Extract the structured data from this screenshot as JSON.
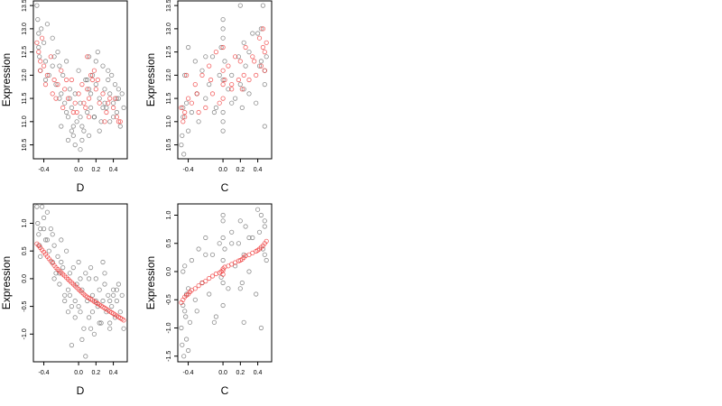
{
  "chart_data": [
    {
      "type": "scatter",
      "xlabel": "D",
      "ylabel": "Expression",
      "xlim": [
        -0.52,
        0.56
      ],
      "ylim": [
        10.2,
        13.6
      ],
      "xticks": [
        "-0.4",
        "0.0",
        "0.2",
        "0.4"
      ],
      "xtick_values": [
        -0.4,
        0.0,
        0.2,
        0.4
      ],
      "yticks": [
        "10.5",
        "11.0",
        "11.5",
        "12.0",
        "12.5",
        "13.0",
        "13.5"
      ],
      "yvalues": [
        10.5,
        11.0,
        11.5,
        12.0,
        12.5,
        13.0,
        13.5
      ],
      "grid": false,
      "series": [
        {
          "color": "#333333",
          "x": [
            -0.48,
            -0.47,
            -0.46,
            -0.45,
            -0.44,
            -0.43,
            -0.4,
            -0.38,
            -0.36,
            -0.34,
            -0.3,
            -0.28,
            -0.26,
            -0.24,
            -0.22,
            -0.2,
            -0.18,
            -0.16,
            -0.14,
            -0.12,
            -0.1,
            -0.08,
            -0.06,
            -0.04,
            -0.02,
            0.0,
            0.02,
            0.04,
            0.06,
            0.08,
            0.1,
            0.12,
            0.14,
            0.16,
            0.18,
            0.2,
            0.22,
            0.24,
            0.26,
            0.28,
            0.3,
            0.32,
            0.34,
            0.36,
            0.38,
            0.4,
            0.42,
            0.44,
            0.46,
            0.48,
            0.5,
            0.52,
            -0.46,
            -0.38,
            -0.3,
            -0.22,
            -0.14,
            -0.06,
            0.02,
            0.1,
            0.14,
            0.2,
            0.3,
            0.4,
            0.46,
            -0.2,
            -0.12,
            -0.04,
            0.04,
            0.12,
            0.24,
            0.36,
            -0.1,
            -0.08,
            0.02,
            0.12,
            0.18,
            0.28,
            0.34,
            0.44
          ],
          "y": [
            13.5,
            13.2,
            12.9,
            12.4,
            12.1,
            13.0,
            12.7,
            12.3,
            13.1,
            12.0,
            12.8,
            12.4,
            11.8,
            12.5,
            12.2,
            11.6,
            12.0,
            11.4,
            12.3,
            11.1,
            11.7,
            11.3,
            10.9,
            11.6,
            11.0,
            12.1,
            11.4,
            10.6,
            10.8,
            11.9,
            11.2,
            12.4,
            11.6,
            12.0,
            11.1,
            11.8,
            12.5,
            11.5,
            11.0,
            12.2,
            11.7,
            11.3,
            11.9,
            11.0,
            12.0,
            11.4,
            11.8,
            11.2,
            11.5,
            10.9,
            11.6,
            11.3,
            12.6,
            11.9,
            12.2,
            11.5,
            11.2,
            10.7,
            11.1,
            11.9,
            11.3,
            12.3,
            11.4,
            11.1,
            11.7,
            10.9,
            10.6,
            10.5,
            10.9,
            11.7,
            10.8,
            11.6,
            11.5,
            10.8,
            10.4,
            10.7,
            11.1,
            11.3,
            12.1,
            11.5
          ]
        },
        {
          "color": "#ee2222",
          "x": [
            -0.48,
            -0.46,
            -0.44,
            -0.42,
            -0.4,
            -0.36,
            -0.32,
            -0.28,
            -0.24,
            -0.2,
            -0.16,
            -0.12,
            -0.08,
            -0.04,
            0.0,
            0.04,
            0.08,
            0.1,
            0.12,
            0.14,
            0.16,
            0.2,
            0.24,
            0.28,
            0.32,
            0.36,
            0.4,
            0.44,
            0.48,
            -0.44,
            -0.3,
            -0.18,
            -0.06,
            0.06,
            0.12,
            0.22,
            0.34,
            0.46,
            -0.38,
            -0.26,
            -0.14,
            -0.02,
            0.1,
            0.18,
            0.3,
            0.42
          ],
          "y": [
            12.7,
            12.5,
            12.3,
            12.8,
            12.2,
            12.0,
            12.4,
            11.9,
            11.8,
            12.1,
            11.7,
            11.5,
            11.9,
            11.4,
            11.6,
            11.8,
            11.3,
            12.4,
            11.5,
            12.0,
            11.9,
            11.7,
            11.4,
            11.6,
            11.2,
            11.5,
            11.3,
            11.1,
            11.0,
            12.1,
            11.6,
            11.3,
            11.2,
            11.4,
            11.1,
            11.9,
            11.4,
            11.0,
            11.8,
            11.5,
            11.9,
            11.2,
            11.7,
            12.1,
            11.0,
            11.5
          ]
        }
      ]
    },
    {
      "type": "scatter",
      "xlabel": "C",
      "ylabel": "Expression",
      "xlim": [
        -0.52,
        0.56
      ],
      "ylim": [
        10.2,
        13.6
      ],
      "xticks": [
        "-0.4",
        "0.0",
        "0.2",
        "0.4"
      ],
      "xtick_values": [
        -0.4,
        0.0,
        0.2,
        0.4
      ],
      "yticks": [
        "10.5",
        "11.0",
        "11.5",
        "12.0",
        "12.5",
        "13.0",
        "13.5"
      ],
      "yvalues": [
        10.5,
        11.0,
        11.5,
        12.0,
        12.5,
        13.0,
        13.5
      ],
      "grid": false,
      "series": [
        {
          "color": "#333333",
          "x": [
            -0.48,
            -0.47,
            -0.46,
            -0.45,
            -0.44,
            -0.42,
            -0.4,
            -0.36,
            -0.32,
            -0.28,
            -0.24,
            -0.2,
            -0.16,
            -0.12,
            -0.08,
            -0.04,
            -0.02,
            0.0,
            0.0,
            0.0,
            0.0,
            0.02,
            0.06,
            0.1,
            0.14,
            0.18,
            0.2,
            0.22,
            0.24,
            0.26,
            0.3,
            0.34,
            0.38,
            0.42,
            0.44,
            0.46,
            0.48,
            0.5,
            -0.46,
            -0.4,
            -0.3,
            -0.2,
            -0.1,
            0.0,
            0.1,
            0.2,
            0.3,
            0.4,
            0.48,
            0.0,
            0.0,
            0.24,
            0.44,
            0.48
          ],
          "y": [
            10.5,
            10.7,
            11.1,
            10.3,
            12.0,
            11.4,
            12.6,
            11.2,
            12.3,
            11.0,
            12.1,
            11.5,
            11.8,
            12.4,
            11.3,
            12.0,
            12.6,
            13.2,
            13.0,
            11.9,
            11.2,
            12.3,
            11.7,
            12.0,
            11.5,
            12.4,
            13.5,
            11.3,
            12.7,
            12.2,
            11.6,
            12.9,
            11.4,
            12.2,
            13.0,
            13.5,
            11.8,
            12.4,
            11.3,
            10.8,
            11.6,
            12.4,
            11.2,
            12.8,
            11.4,
            11.8,
            12.5,
            12.9,
            12.1,
            11.0,
            10.8,
            11.7,
            12.3,
            10.9
          ]
        },
        {
          "color": "#ee2222",
          "x": [
            -0.48,
            -0.46,
            -0.44,
            -0.42,
            -0.4,
            -0.36,
            -0.32,
            -0.28,
            -0.24,
            -0.2,
            -0.16,
            -0.12,
            -0.08,
            -0.04,
            0.0,
            0.0,
            0.0,
            0.02,
            0.06,
            0.1,
            0.14,
            0.18,
            0.2,
            0.22,
            0.26,
            0.3,
            0.34,
            0.38,
            0.42,
            0.44,
            0.46,
            0.48,
            0.5,
            -0.44,
            -0.3,
            -0.14,
            0.0,
            0.1,
            0.24,
            0.36,
            0.46,
            0.48
          ],
          "y": [
            11.3,
            11.0,
            11.2,
            12.0,
            11.5,
            11.4,
            11.8,
            11.2,
            12.0,
            11.3,
            12.2,
            11.6,
            12.5,
            11.4,
            12.6,
            12.1,
            11.5,
            11.9,
            12.2,
            11.7,
            12.4,
            11.9,
            12.3,
            11.7,
            12.6,
            11.9,
            12.4,
            12.0,
            12.8,
            12.2,
            13.0,
            12.1,
            12.7,
            11.1,
            11.6,
            11.9,
            11.8,
            11.8,
            12.0,
            12.3,
            12.6,
            12.5
          ]
        }
      ]
    },
    {
      "type": "scatter",
      "xlabel": "D",
      "ylabel": "Expression",
      "xlim": [
        -0.52,
        0.56
      ],
      "ylim": [
        -1.5,
        1.35
      ],
      "xticks": [
        "-0.4",
        "0.0",
        "0.2",
        "0.4"
      ],
      "xtick_values": [
        -0.4,
        0.0,
        0.2,
        0.4
      ],
      "yticks": [
        "-1.0",
        "-0.5",
        "0.0",
        "0.5",
        "1.0"
      ],
      "yvalues": [
        -1.0,
        -0.5,
        0.0,
        0.5,
        1.0
      ],
      "grid": false,
      "series": [
        {
          "color": "#333333",
          "x": [
            -0.48,
            -0.47,
            -0.46,
            -0.45,
            -0.44,
            -0.42,
            -0.4,
            -0.38,
            -0.36,
            -0.34,
            -0.32,
            -0.3,
            -0.28,
            -0.26,
            -0.24,
            -0.22,
            -0.2,
            -0.18,
            -0.16,
            -0.14,
            -0.12,
            -0.1,
            -0.08,
            -0.06,
            -0.04,
            -0.02,
            0.0,
            0.02,
            0.04,
            0.06,
            0.08,
            0.1,
            0.12,
            0.14,
            0.16,
            0.18,
            0.2,
            0.22,
            0.24,
            0.26,
            0.28,
            0.3,
            0.32,
            0.34,
            0.36,
            0.38,
            0.4,
            0.42,
            0.44,
            0.46,
            0.48,
            0.5,
            0.52,
            -0.44,
            -0.36,
            -0.28,
            -0.2,
            -0.12,
            -0.04,
            0.04,
            0.12,
            0.2,
            0.28,
            0.36,
            0.44,
            -0.3,
            -0.16,
            -0.08,
            0.0,
            0.08,
            0.16,
            0.3,
            0.4,
            -0.4,
            -0.22,
            -0.1,
            0.02,
            0.14,
            0.24,
            0.36
          ],
          "y": [
            1.3,
            1.0,
            0.8,
            0.6,
            0.9,
            1.3,
            1.1,
            0.7,
            1.2,
            0.5,
            0.9,
            0.3,
            0.6,
            0.1,
            0.4,
            -0.1,
            0.7,
            0.2,
            -0.3,
            0.5,
            -0.2,
            0.1,
            -0.5,
            0.2,
            -0.4,
            -0.1,
            0.3,
            -0.6,
            -0.2,
            -0.9,
            0.1,
            -0.4,
            -0.7,
            0.2,
            -0.3,
            -1.0,
            0.0,
            -0.5,
            -0.2,
            -0.8,
            -0.4,
            0.1,
            -0.6,
            -0.3,
            -0.9,
            -0.5,
            -0.2,
            -0.7,
            -0.4,
            -0.1,
            -0.6,
            -0.3,
            -0.9,
            0.4,
            0.7,
            0.0,
            0.3,
            -0.6,
            -0.7,
            -1.1,
            0.0,
            -0.4,
            0.3,
            -0.8,
            -0.2,
            0.8,
            -0.4,
            -1.2,
            -0.5,
            -1.4,
            -0.6,
            -0.1,
            -0.3,
            0.9,
            0.1,
            -0.3,
            0.0,
            -0.9,
            -0.8,
            -0.4
          ]
        },
        {
          "color": "#ee2222",
          "x": [
            -0.48,
            -0.46,
            -0.44,
            -0.42,
            -0.4,
            -0.38,
            -0.36,
            -0.34,
            -0.32,
            -0.3,
            -0.28,
            -0.26,
            -0.24,
            -0.22,
            -0.2,
            -0.18,
            -0.16,
            -0.14,
            -0.12,
            -0.1,
            -0.08,
            -0.06,
            -0.04,
            -0.02,
            0.0,
            0.02,
            0.04,
            0.06,
            0.08,
            0.1,
            0.12,
            0.14,
            0.16,
            0.18,
            0.2,
            0.22,
            0.24,
            0.26,
            0.28,
            0.3,
            0.32,
            0.34,
            0.36,
            0.38,
            0.4,
            0.42,
            0.44,
            0.46,
            0.48,
            0.5,
            0.52
          ],
          "y": [
            0.63,
            0.6,
            0.56,
            0.52,
            0.48,
            0.44,
            0.4,
            0.36,
            0.32,
            0.28,
            0.24,
            0.2,
            0.17,
            0.14,
            0.11,
            0.08,
            0.05,
            0.02,
            -0.01,
            -0.04,
            -0.07,
            -0.1,
            -0.13,
            -0.16,
            -0.19,
            -0.22,
            -0.25,
            -0.28,
            -0.31,
            -0.33,
            -0.35,
            -0.37,
            -0.39,
            -0.41,
            -0.43,
            -0.45,
            -0.47,
            -0.49,
            -0.51,
            -0.53,
            -0.55,
            -0.57,
            -0.59,
            -0.61,
            -0.63,
            -0.65,
            -0.67,
            -0.69,
            -0.71,
            -0.73,
            -0.75
          ]
        }
      ]
    },
    {
      "type": "scatter",
      "xlabel": "C",
      "ylabel": "Expression",
      "xlim": [
        -0.52,
        0.56
      ],
      "ylim": [
        -1.6,
        1.2
      ],
      "xticks": [
        "-0.4",
        "0.0",
        "0.2",
        "0.4"
      ],
      "xtick_values": [
        -0.4,
        0.0,
        0.2,
        0.4
      ],
      "yticks": [
        "-1.5",
        "-1.0",
        "-0.5",
        "0.0",
        "0.5",
        "1.0"
      ],
      "yvalues": [
        -1.5,
        -1.0,
        -0.5,
        0.0,
        0.5,
        1.0
      ],
      "grid": false,
      "series": [
        {
          "color": "#333333",
          "x": [
            -0.48,
            -0.47,
            -0.46,
            -0.45,
            -0.44,
            -0.43,
            -0.42,
            -0.4,
            -0.38,
            -0.36,
            -0.32,
            -0.28,
            -0.24,
            -0.2,
            -0.16,
            -0.12,
            -0.08,
            -0.04,
            -0.02,
            0.0,
            0.0,
            0.0,
            0.0,
            0.0,
            0.02,
            0.06,
            0.1,
            0.14,
            0.18,
            0.2,
            0.22,
            0.24,
            0.26,
            0.3,
            0.34,
            0.38,
            0.42,
            0.44,
            0.46,
            0.48,
            0.5,
            -0.46,
            -0.42,
            -0.3,
            -0.2,
            -0.1,
            0.0,
            0.1,
            0.2,
            0.3,
            0.4,
            0.48,
            -0.44,
            -0.4,
            0.24,
            0.44,
            0.48
          ],
          "y": [
            -1.0,
            -1.3,
            -0.6,
            -1.5,
            0.1,
            -0.8,
            -1.2,
            -0.3,
            -0.9,
            0.2,
            -0.5,
            0.4,
            -0.2,
            0.6,
            -0.4,
            0.3,
            -0.8,
            0.5,
            -0.1,
            0.9,
            1.0,
            0.6,
            -0.2,
            -0.6,
            0.4,
            -0.3,
            0.7,
            0.1,
            0.5,
            0.9,
            -0.2,
            0.3,
            0.8,
            0.0,
            0.6,
            -0.4,
            0.7,
            1.0,
            0.4,
            0.8,
            0.2,
            0.0,
            -0.4,
            -0.7,
            0.3,
            -0.9,
            0.2,
            0.5,
            -0.3,
            0.6,
            1.1,
            0.9,
            -0.7,
            -1.4,
            -0.9,
            -1.0,
            0.3
          ]
        },
        {
          "color": "#ee2222",
          "x": [
            -0.48,
            -0.46,
            -0.44,
            -0.42,
            -0.4,
            -0.38,
            -0.36,
            -0.32,
            -0.28,
            -0.24,
            -0.2,
            -0.16,
            -0.12,
            -0.08,
            -0.04,
            -0.02,
            0.0,
            0.0,
            0.0,
            0.02,
            0.06,
            0.1,
            0.14,
            0.18,
            0.2,
            0.22,
            0.24,
            0.26,
            0.3,
            0.34,
            0.38,
            0.4,
            0.42,
            0.44,
            0.46,
            0.48,
            0.5
          ],
          "y": [
            -0.55,
            -0.5,
            -0.45,
            -0.42,
            -0.4,
            -0.36,
            -0.33,
            -0.3,
            -0.25,
            -0.2,
            -0.17,
            -0.12,
            -0.08,
            -0.04,
            -0.02,
            0.0,
            0.02,
            0.05,
            -0.05,
            0.08,
            0.1,
            0.13,
            0.16,
            0.19,
            0.2,
            0.22,
            0.25,
            0.28,
            0.3,
            0.33,
            0.36,
            0.38,
            0.4,
            0.43,
            0.46,
            0.5,
            0.54
          ]
        }
      ]
    }
  ]
}
